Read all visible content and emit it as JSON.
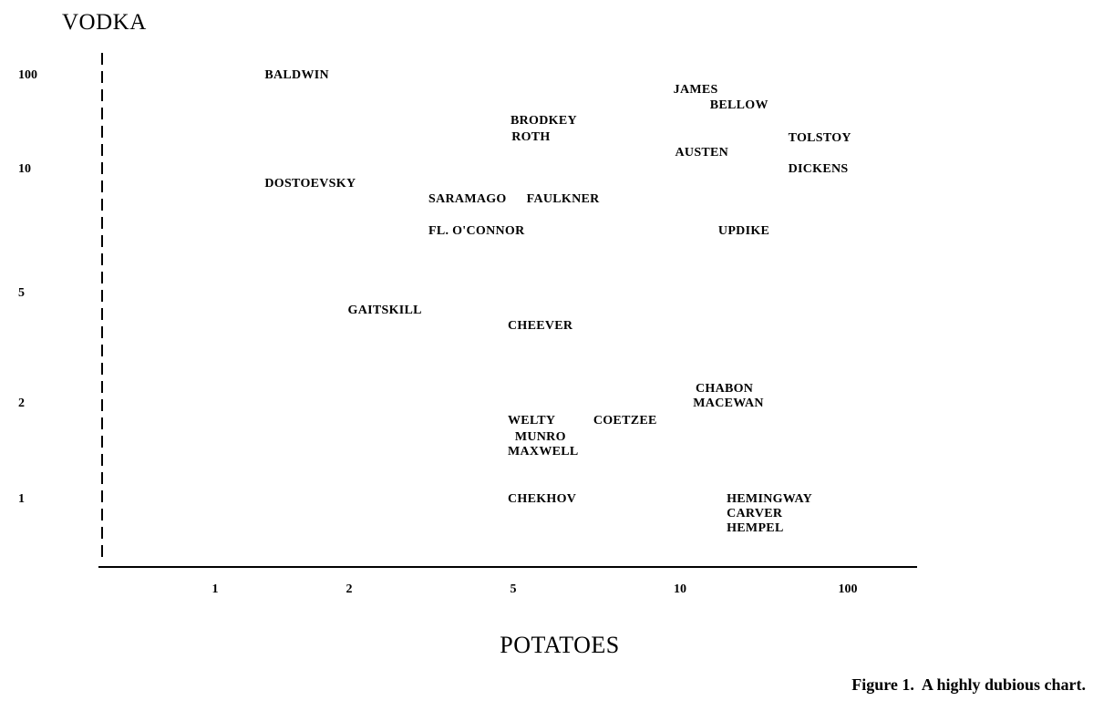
{
  "chart_data": {
    "type": "scatter",
    "title": "",
    "xlabel": "POTATOES",
    "ylabel": "VODKA",
    "caption": "Figure 1.  A highly dubious chart.",
    "x_ticks": [
      1,
      2,
      5,
      10,
      100
    ],
    "y_ticks": [
      100,
      10,
      5,
      2,
      1
    ],
    "x_scale": "irregular-log",
    "y_scale": "irregular-log",
    "grid": false,
    "legend": false,
    "points": [
      {
        "label": "BALDWIN",
        "x": 1.37,
        "y": 100
      },
      {
        "label": "JAMES",
        "x": 9.8,
        "y": 86
      },
      {
        "label": "BELLOW",
        "x": 26,
        "y": 71
      },
      {
        "label": "BRODKEY",
        "x": 4.95,
        "y": 56
      },
      {
        "label": "ROTH",
        "x": 4.97,
        "y": 41
      },
      {
        "label": "TOLSTOY",
        "x": 68,
        "y": 40
      },
      {
        "label": "AUSTEN",
        "x": 9.85,
        "y": 26
      },
      {
        "label": "DICKENS",
        "x": 68,
        "y": 10
      },
      {
        "label": "DOSTOEVSKY",
        "x": 1.37,
        "y": 9.4
      },
      {
        "label": "SARAMAGO",
        "x": 3.45,
        "y": 8.8
      },
      {
        "label": "FAULKNER",
        "x": 5.4,
        "y": 8.8
      },
      {
        "label": "FL. O'CONNOR",
        "x": 3.45,
        "y": 7.5
      },
      {
        "label": "UPDIKE",
        "x": 30.5,
        "y": 7.5
      },
      {
        "label": "GAITSKILL",
        "x": 1.99,
        "y": 4.53
      },
      {
        "label": "CHEEVER",
        "x": 4.9,
        "y": 4.1
      },
      {
        "label": "CHABON",
        "x": 18.3,
        "y": 2.4
      },
      {
        "label": "MACEWAN",
        "x": 17,
        "y": 2
      },
      {
        "label": "WELTY",
        "x": 4.9,
        "y": 1.82
      },
      {
        "label": "COETZEE",
        "x": 7.4,
        "y": 1.82
      },
      {
        "label": "MUNRO",
        "x": 5.05,
        "y": 1.65
      },
      {
        "label": "MAXWELL",
        "x": 4.9,
        "y": 1.5
      },
      {
        "label": "CHEKHOV",
        "x": 4.9,
        "y": 1
      },
      {
        "label": "HEMINGWAY",
        "x": 35,
        "y": 1
      },
      {
        "label": "CARVER",
        "x": 35,
        "y": 0.85
      },
      {
        "label": "HEMPEL",
        "x": 35,
        "y": 0.7
      }
    ],
    "colors": {
      "text": "#000000",
      "axis": "#000000",
      "background": "#ffffff"
    }
  }
}
